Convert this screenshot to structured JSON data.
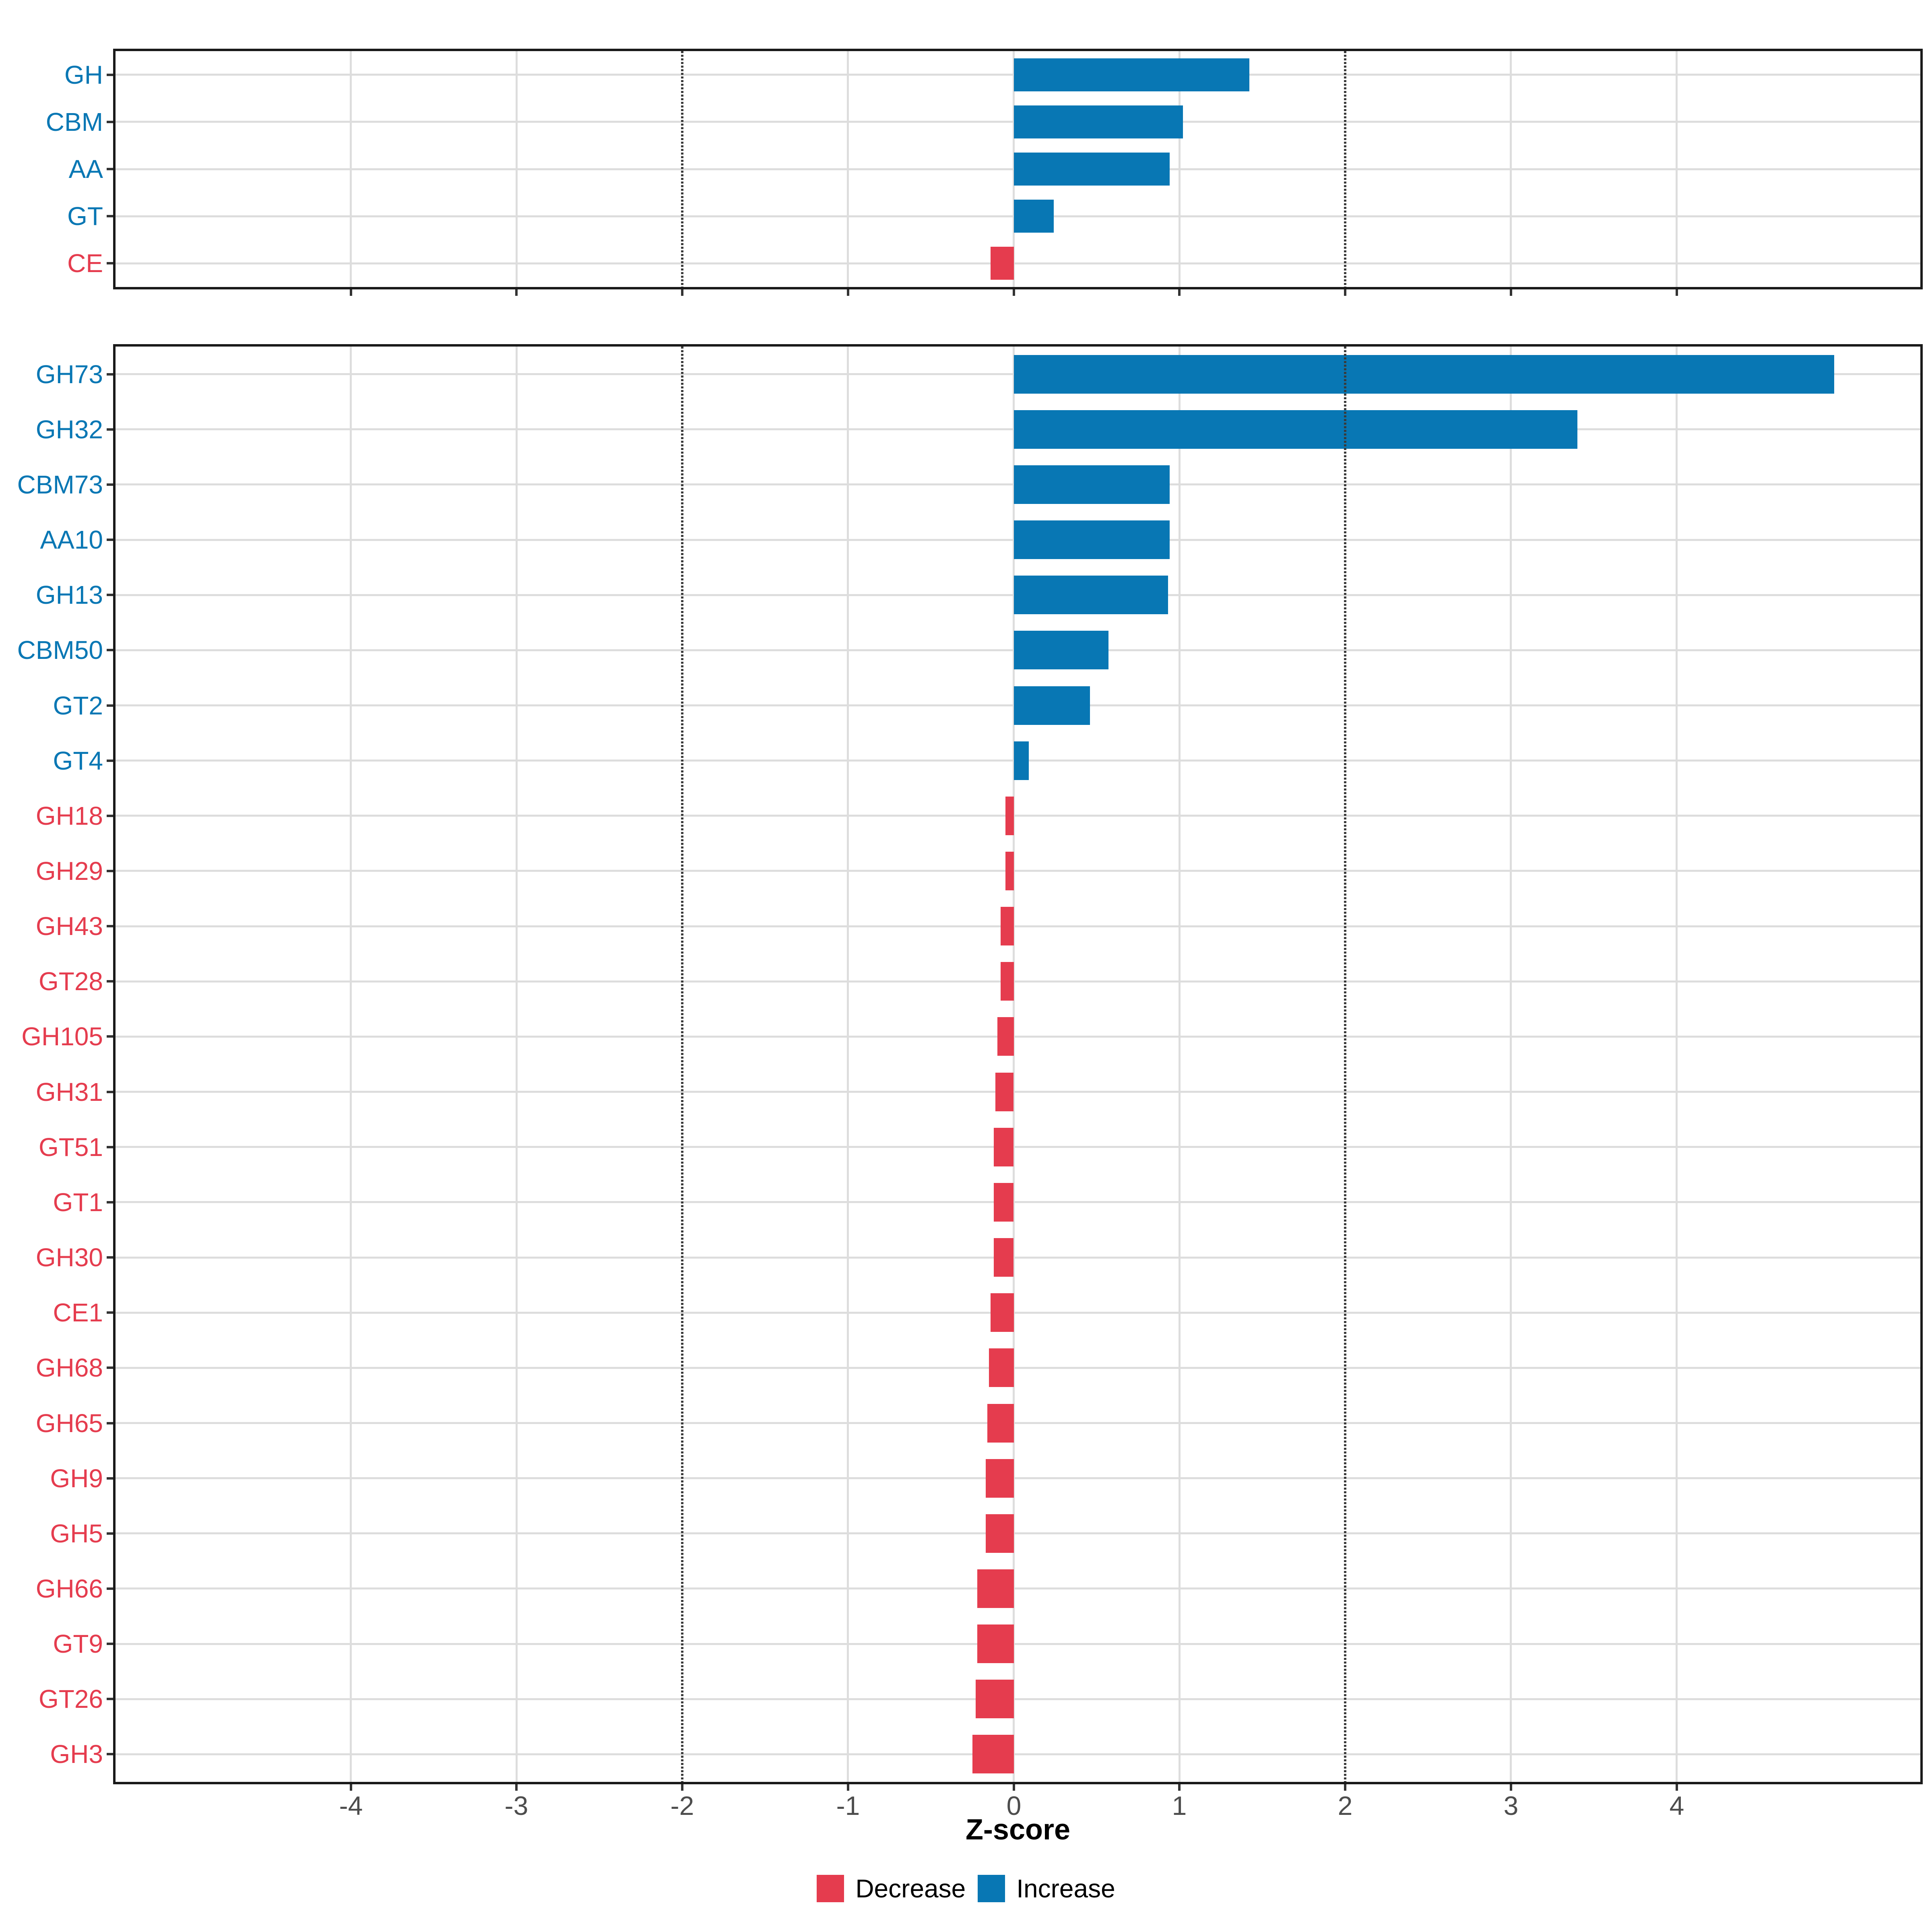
{
  "axis": {
    "title": "Z-score",
    "tick_labels": [
      "-4",
      "-3",
      "-2",
      "-1",
      "0",
      "1",
      "2",
      "3",
      "4"
    ],
    "tick_values": [
      -4,
      -3,
      -2,
      -1,
      0,
      1,
      2,
      3,
      4
    ],
    "range": [
      -5.42,
      5.47
    ],
    "dotted_reference_lines": [
      -2,
      2
    ],
    "tick_label_color": "#4D4D4D"
  },
  "legend": {
    "items": [
      {
        "label": "Decrease",
        "color": "#E53C4E"
      },
      {
        "label": "Increase",
        "color": "#0877B4"
      }
    ]
  },
  "colors": {
    "increase": "#0877B4",
    "decrease": "#E53C4E",
    "grid": "#DDDDDD",
    "reference_line": "#3A3A3A",
    "panel_border": "#1A1A1A",
    "tick_mark": "#333333",
    "tick_label": "#4D4D4D",
    "background": "#FFFFFF"
  },
  "chart_data": [
    {
      "type": "bar",
      "orientation": "horizontal",
      "panel": "cazyme-classes",
      "categories": [
        "GH",
        "CBM",
        "AA",
        "GT",
        "CE"
      ],
      "values": [
        1.42,
        1.02,
        0.94,
        0.24,
        -0.14
      ],
      "xlabel": "Z-score",
      "xlim": [
        -5.42,
        5.47
      ],
      "grid": "on",
      "legend_position": "bottom"
    },
    {
      "type": "bar",
      "orientation": "horizontal",
      "panel": "cazyme-families",
      "categories": [
        "GH73",
        "GH32",
        "CBM73",
        "AA10",
        "GH13",
        "CBM50",
        "GT2",
        "GT4",
        "GH18",
        "GH29",
        "GH43",
        "GT28",
        "GH105",
        "GH31",
        "GT51",
        "GT1",
        "GH30",
        "CE1",
        "GH68",
        "GH65",
        "GH9",
        "GH5",
        "GH66",
        "GT9",
        "GT26",
        "GH3"
      ],
      "values": [
        4.95,
        3.4,
        0.94,
        0.94,
        0.93,
        0.57,
        0.46,
        0.09,
        -0.05,
        -0.05,
        -0.08,
        -0.08,
        -0.1,
        -0.11,
        -0.12,
        -0.12,
        -0.12,
        -0.14,
        -0.15,
        -0.16,
        -0.17,
        -0.17,
        -0.22,
        -0.22,
        -0.23,
        -0.25
      ],
      "xlabel": "Z-score",
      "xlim": [
        -5.42,
        5.47
      ],
      "grid": "on",
      "legend_position": "bottom"
    }
  ]
}
